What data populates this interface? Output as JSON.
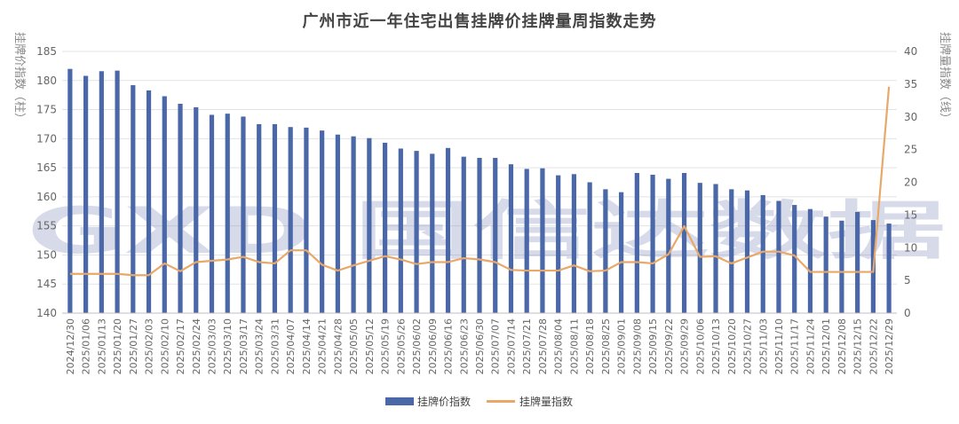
{
  "chart_data": {
    "type": "bar",
    "title": "广州市近一年住宅出售挂牌价挂牌量周指数走势",
    "ylabel_left": "挂牌价指数（柱）",
    "ylabel_right": "挂牌量指数（线）",
    "y_left_range": [
      140,
      185
    ],
    "y_left_ticks": [
      140,
      145,
      150,
      155,
      160,
      165,
      170,
      175,
      180,
      185
    ],
    "y_right_range": [
      0,
      40
    ],
    "y_right_ticks": [
      0,
      5,
      10,
      15,
      20,
      25,
      30,
      35,
      40
    ],
    "grid": true,
    "legend_position": "bottom",
    "categories": [
      "2024/12/30",
      "2025/01/06",
      "2025/01/13",
      "2025/01/20",
      "2025/01/27",
      "2025/02/03",
      "2025/02/10",
      "2025/02/17",
      "2025/02/24",
      "2025/03/03",
      "2025/03/10",
      "2025/03/17",
      "2025/03/24",
      "2025/03/31",
      "2025/04/07",
      "2025/04/14",
      "2025/04/21",
      "2025/04/28",
      "2025/05/05",
      "2025/05/12",
      "2025/05/19",
      "2025/05/26",
      "2025/06/02",
      "2025/06/09",
      "2025/06/16",
      "2025/06/23",
      "2025/06/30",
      "2025/07/07",
      "2025/07/14",
      "2025/07/21",
      "2025/07/28",
      "2025/08/04",
      "2025/08/11",
      "2025/08/18",
      "2025/08/25",
      "2025/09/01",
      "2025/09/08",
      "2025/09/15",
      "2025/09/22",
      "2025/09/29",
      "2025/10/06",
      "2025/10/13",
      "2025/10/20",
      "2025/10/27",
      "2025/11/03",
      "2025/11/10",
      "2025/11/17",
      "2025/11/24",
      "2025/12/01",
      "2025/12/08",
      "2025/12/15",
      "2025/12/22",
      "2025/12/29"
    ],
    "series": [
      {
        "name": "挂牌价指数",
        "type": "bar",
        "axis": "left",
        "color": "#4a67a8",
        "values": [
          182.0,
          180.8,
          181.6,
          181.7,
          179.2,
          178.3,
          177.3,
          176.0,
          175.4,
          174.1,
          174.3,
          173.8,
          172.5,
          172.5,
          172.0,
          171.9,
          171.4,
          170.7,
          170.4,
          170.1,
          169.3,
          168.3,
          167.9,
          167.4,
          168.4,
          166.9,
          166.7,
          166.7,
          165.6,
          164.8,
          164.9,
          163.7,
          163.9,
          162.5,
          161.3,
          160.8,
          164.1,
          163.8,
          163.1,
          164.1,
          162.4,
          162.2,
          161.3,
          161.1,
          160.3,
          159.3,
          158.6,
          157.9,
          156.6,
          155.9,
          157.4,
          156.0,
          155.4
        ]
      },
      {
        "name": "挂牌量指数",
        "type": "line",
        "axis": "right",
        "color": "#e8a86a",
        "values": [
          6.0,
          6.0,
          6.0,
          6.0,
          5.8,
          5.8,
          7.6,
          6.4,
          7.8,
          8.0,
          8.2,
          8.6,
          7.8,
          7.6,
          9.6,
          9.6,
          7.4,
          6.5,
          7.3,
          8.0,
          8.7,
          8.2,
          7.5,
          7.8,
          7.8,
          8.4,
          8.2,
          7.8,
          6.6,
          6.5,
          6.5,
          6.5,
          7.3,
          6.4,
          6.5,
          7.8,
          7.8,
          7.6,
          9.0,
          13.3,
          8.6,
          8.7,
          7.6,
          8.5,
          9.4,
          9.4,
          8.8,
          6.3,
          6.3,
          6.3,
          6.3,
          6.3,
          34.6
        ]
      }
    ]
  },
  "watermark": {
    "text": "GXD 国信达数据",
    "color": "#7d87b8"
  }
}
